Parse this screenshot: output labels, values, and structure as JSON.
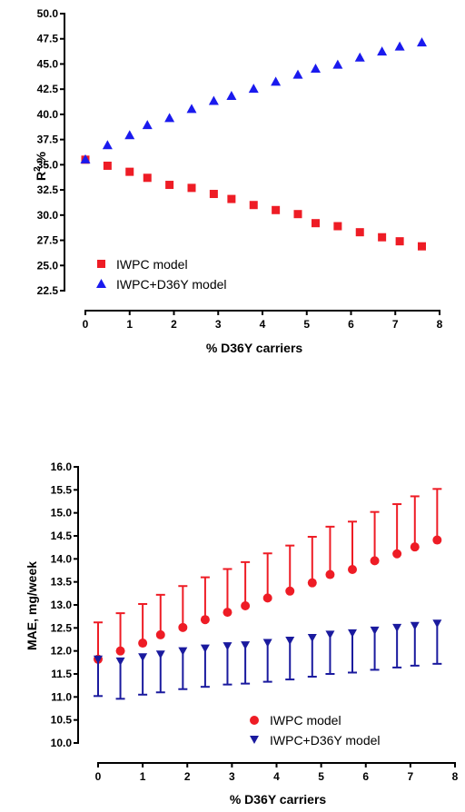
{
  "chart_data": [
    {
      "type": "scatter",
      "title": "",
      "xlabel": "% D36Y carriers",
      "ylabel": "R², %",
      "ylabel_base": "R",
      "ylabel_sup": "2",
      "ylabel_rest": ",%",
      "xlim": [
        0,
        8
      ],
      "ylim": [
        22.5,
        50.0
      ],
      "x_ticks": [
        "0",
        "1",
        "2",
        "3",
        "4",
        "5",
        "6",
        "7",
        "8"
      ],
      "y_ticks": [
        "22.5",
        "25.0",
        "27.5",
        "30.0",
        "32.5",
        "35.0",
        "37.5",
        "40.0",
        "42.5",
        "45.0",
        "47.5",
        "50.0"
      ],
      "grid": false,
      "legend_position": "bottom-left",
      "series": [
        {
          "name": "IWPC model",
          "marker": "square",
          "color": "#ee1c25",
          "x": [
            0,
            0.5,
            1.0,
            1.4,
            1.9,
            2.4,
            2.9,
            3.3,
            3.8,
            4.3,
            4.8,
            5.2,
            5.7,
            6.2,
            6.7,
            7.1,
            7.6
          ],
          "y": [
            35.5,
            34.9,
            34.3,
            33.7,
            33.0,
            32.7,
            32.1,
            31.6,
            31.0,
            30.5,
            30.1,
            29.2,
            28.9,
            28.3,
            27.8,
            27.4,
            26.9
          ]
        },
        {
          "name": "IWPC+D36Y model",
          "marker": "triangle-up",
          "color": "#1a1aee",
          "x": [
            0,
            0.5,
            1.0,
            1.4,
            1.9,
            2.4,
            2.9,
            3.3,
            3.8,
            4.3,
            4.8,
            5.2,
            5.7,
            6.2,
            6.7,
            7.1,
            7.6
          ],
          "y": [
            35.5,
            36.9,
            37.9,
            38.9,
            39.6,
            40.5,
            41.3,
            41.8,
            42.5,
            43.2,
            43.9,
            44.5,
            44.9,
            45.6,
            46.2,
            46.7,
            47.1
          ]
        }
      ]
    },
    {
      "type": "scatter",
      "title": "",
      "xlabel": "% D36Y carriers",
      "ylabel": "MAE, mg/week",
      "xlim": [
        0,
        8
      ],
      "ylim": [
        10.0,
        16.0
      ],
      "x_ticks": [
        "0",
        "1",
        "2",
        "3",
        "4",
        "5",
        "6",
        "7",
        "8"
      ],
      "y_ticks": [
        "10.0",
        "10.5",
        "11.0",
        "11.5",
        "12.0",
        "12.5",
        "13.0",
        "13.5",
        "14.0",
        "14.5",
        "15.0",
        "15.5",
        "16.0"
      ],
      "grid": false,
      "legend_position": "bottom-right",
      "series": [
        {
          "name": "IWPC model",
          "marker": "circle",
          "color": "#ee1c25",
          "error_direction": "up",
          "x": [
            0,
            0.5,
            1.0,
            1.4,
            1.9,
            2.4,
            2.9,
            3.3,
            3.8,
            4.3,
            4.8,
            5.2,
            5.7,
            6.2,
            6.7,
            7.1,
            7.6
          ],
          "y": [
            11.82,
            12.0,
            12.17,
            12.35,
            12.51,
            12.68,
            12.84,
            12.98,
            13.15,
            13.3,
            13.48,
            13.66,
            13.77,
            13.96,
            14.11,
            14.26,
            14.41
          ],
          "error": [
            0.8,
            0.82,
            0.85,
            0.87,
            0.9,
            0.92,
            0.94,
            0.95,
            0.97,
            0.99,
            1.0,
            1.04,
            1.04,
            1.06,
            1.08,
            1.1,
            1.11
          ]
        },
        {
          "name": "IWPC+D36Y model",
          "marker": "triangle-down",
          "color": "#1a1a9e",
          "error_direction": "down",
          "x": [
            0,
            0.5,
            1.0,
            1.4,
            1.9,
            2.4,
            2.9,
            3.3,
            3.8,
            4.3,
            4.8,
            5.2,
            5.7,
            6.2,
            6.7,
            7.1,
            7.6
          ],
          "y": [
            11.82,
            11.78,
            11.87,
            11.93,
            12.0,
            12.06,
            12.11,
            12.13,
            12.18,
            12.23,
            12.29,
            12.36,
            12.39,
            12.45,
            12.51,
            12.55,
            12.6
          ],
          "error": [
            0.8,
            0.82,
            0.82,
            0.83,
            0.83,
            0.84,
            0.84,
            0.84,
            0.85,
            0.85,
            0.85,
            0.86,
            0.86,
            0.86,
            0.87,
            0.87,
            0.88
          ]
        }
      ]
    }
  ]
}
